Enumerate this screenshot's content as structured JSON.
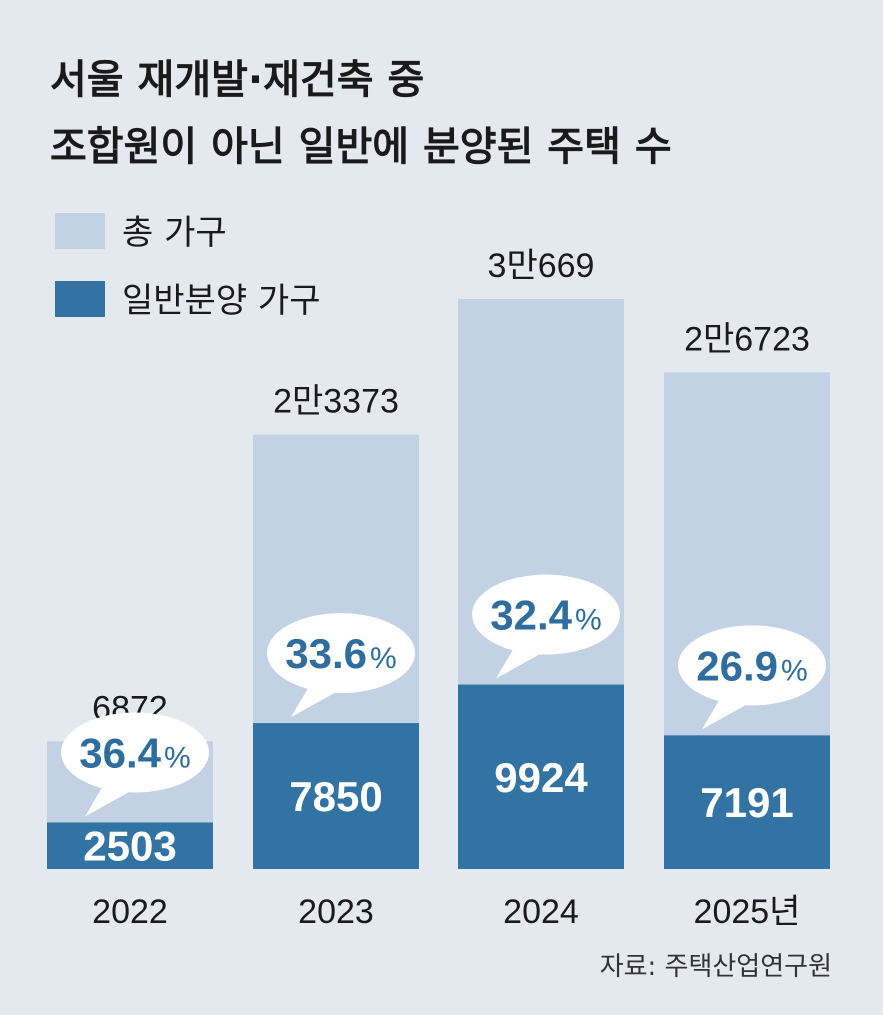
{
  "title_lines": [
    "서울 재개발·재건축 중",
    "조합원이 아닌 일반에 분양된 주택 수"
  ],
  "legend": [
    {
      "label": "총 가구",
      "color": "#c3d1e4"
    },
    {
      "label": "일반분양 가구",
      "color": "#3273a3"
    }
  ],
  "source": "자료: 주택산업연구원",
  "colors": {
    "background": "#e4e9f0",
    "total": "#c3d1e4",
    "general": "#3273a3",
    "bubble": "#ffffff",
    "percent_text": "#2e6d9e"
  },
  "chart_data": {
    "type": "bar",
    "categories": [
      "2022",
      "2023",
      "2024",
      "2025년"
    ],
    "series": [
      {
        "name": "총 가구",
        "values": [
          6872,
          23373,
          30669,
          26723
        ]
      },
      {
        "name": "일반분양 가구",
        "values": [
          2503,
          7850,
          9924,
          7191
        ]
      }
    ],
    "total_labels": [
      "6872",
      "2만3373",
      "3만669",
      "2만6723"
    ],
    "general_labels": [
      "2503",
      "7850",
      "9924",
      "7191"
    ],
    "percent_labels": [
      "36.4",
      "33.6",
      "32.4",
      "26.9"
    ],
    "percent_symbol": "%",
    "stacking": "overlay",
    "legend_position": "top-left",
    "grid": false,
    "ylim": [
      0,
      30669
    ]
  }
}
